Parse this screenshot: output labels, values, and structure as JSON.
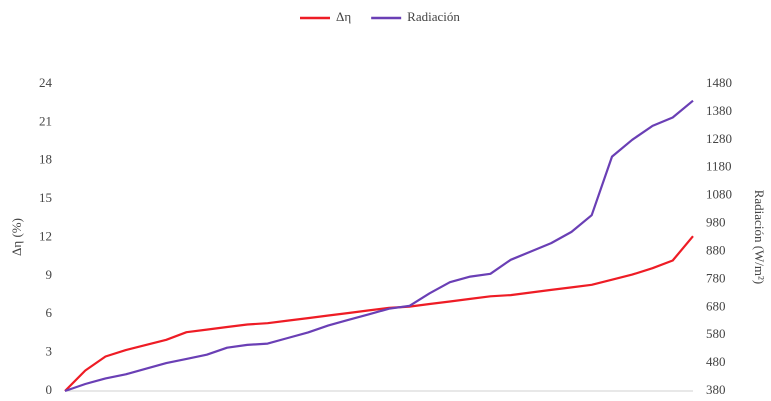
{
  "chart_data": {
    "type": "line",
    "categories": [
      null,
      null,
      null,
      null,
      null,
      null,
      null,
      null,
      null,
      null,
      null,
      null,
      null,
      null,
      null,
      null,
      null,
      null,
      null,
      null,
      null,
      null,
      null,
      null,
      null,
      null,
      null,
      null,
      null,
      null,
      null,
      null
    ],
    "series": [
      {
        "name": "Δη",
        "color": "#ee1c25",
        "values": [
          0,
          1.6,
          2.7,
          3.2,
          3.6,
          4.0,
          4.6,
          4.8,
          5.0,
          5.2,
          5.3,
          5.5,
          5.7,
          5.9,
          6.1,
          6.3,
          6.5,
          6.6,
          6.8,
          7.0,
          7.2,
          7.4,
          7.5,
          7.7,
          7.9,
          8.1,
          8.3,
          8.7,
          9.1,
          9.6,
          10.2,
          12.1
        ]
      },
      {
        "name": "Radiación",
        "color": "#6a3fb5",
        "axis": "y2",
        "values": [
          380,
          405,
          425,
          440,
          460,
          480,
          495,
          510,
          535,
          545,
          550,
          570,
          590,
          615,
          635,
          655,
          675,
          685,
          730,
          770,
          790,
          800,
          850,
          880,
          910,
          950,
          1010,
          1220,
          1280,
          1330,
          1360,
          1420
        ]
      }
    ],
    "ylabel": "Δη (%)",
    "y2label": "Radiación (W/m²)",
    "ylim": [
      0,
      24
    ],
    "yticks": [
      0,
      3,
      6,
      9,
      12,
      15,
      18,
      21,
      24
    ],
    "y2lim": [
      380,
      1480
    ],
    "y2ticks": [
      380,
      480,
      580,
      680,
      780,
      880,
      980,
      1080,
      1180,
      1280,
      1380,
      1480
    ],
    "legend": "top"
  }
}
